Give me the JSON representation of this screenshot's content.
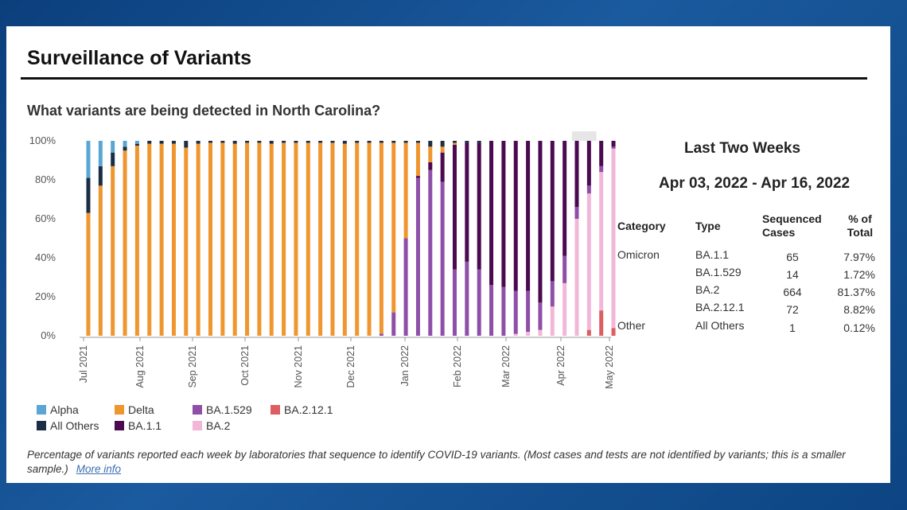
{
  "page_title": "Surveillance of Variants",
  "question": "What variants are being detected in North Carolina?",
  "colors": {
    "Alpha": "#5aa6d3",
    "Delta": "#f0962e",
    "BA.1.529": "#8e4fa9",
    "BA.2.12.1": "#dd5d61",
    "All Others": "#1c2e45",
    "BA.1.1": "#4b0a4f",
    "BA.2": "#f2b7d7"
  },
  "legend": [
    {
      "label": "Alpha",
      "color": "#5aa6d3"
    },
    {
      "label": "Delta",
      "color": "#f0962e"
    },
    {
      "label": "BA.1.529",
      "color": "#8e4fa9"
    },
    {
      "label": "BA.2.12.1",
      "color": "#dd5d61"
    },
    {
      "label": "All Others",
      "color": "#1c2e45"
    },
    {
      "label": "BA.1.1",
      "color": "#4b0a4f"
    },
    {
      "label": "BA.2",
      "color": "#f2b7d7"
    }
  ],
  "caption": "Percentage of variants reported each week by laboratories that sequence to identify COVID-19 variants. (Most cases and tests are not identified by variants; this is a smaller sample.)",
  "more_info": "More info",
  "summary": {
    "heading": "Last Two Weeks",
    "range": "Apr 03, 2022 - Apr 16, 2022",
    "headers": {
      "category": "Category",
      "type": "Type",
      "cases": "Sequenced Cases",
      "pct": "% of Total"
    },
    "rows": [
      {
        "category": "Omicron",
        "type": "BA.1.1",
        "cases": "65",
        "pct": "7.97%"
      },
      {
        "category": "",
        "type": "BA.1.529",
        "cases": "14",
        "pct": "1.72%"
      },
      {
        "category": "",
        "type": "BA.2",
        "cases": "664",
        "pct": "81.37%"
      },
      {
        "category": "",
        "type": "BA.2.12.1",
        "cases": "72",
        "pct": "8.82%"
      },
      {
        "category": "Other",
        "type": "All Others",
        "cases": "1",
        "pct": "0.12%"
      }
    ]
  },
  "chart_data": {
    "type": "bar",
    "stacked": true,
    "title": "",
    "ylim": [
      0,
      100
    ],
    "yticks": [
      "0%",
      "20%",
      "40%",
      "60%",
      "80%",
      "100%"
    ],
    "x_tick_labels": [
      "Jul 2021",
      "Aug 2021",
      "Sep 2021",
      "Oct 2021",
      "Nov 2021",
      "Dec 2021",
      "Jan 2022",
      "Feb 2022",
      "Mar 2022",
      "Apr 2022",
      "May 2022"
    ],
    "series_order": [
      "BA.2.12.1",
      "BA.2",
      "BA.1.529",
      "BA.1.1",
      "Delta",
      "All Others",
      "Alpha"
    ],
    "weeks": [
      {
        "Delta": 63,
        "All Others": 18,
        "Alpha": 19
      },
      {
        "Delta": 77,
        "All Others": 10,
        "Alpha": 13
      },
      {
        "Delta": 87,
        "All Others": 7,
        "Alpha": 6
      },
      {
        "Delta": 95,
        "All Others": 2,
        "Alpha": 3
      },
      {
        "Delta": 97.5,
        "All Others": 1,
        "Alpha": 1.5
      },
      {
        "Delta": 98.5,
        "All Others": 1.5
      },
      {
        "Delta": 98.5,
        "All Others": 1.5
      },
      {
        "Delta": 98.5,
        "All Others": 1.5
      },
      {
        "Delta": 96.5,
        "All Others": 3.5
      },
      {
        "Delta": 98.5,
        "All Others": 1.5
      },
      {
        "Delta": 99,
        "All Others": 1
      },
      {
        "Delta": 99,
        "All Others": 1
      },
      {
        "Delta": 98.5,
        "All Others": 1.5
      },
      {
        "Delta": 99,
        "All Others": 1
      },
      {
        "Delta": 99,
        "All Others": 1
      },
      {
        "Delta": 98.5,
        "All Others": 1.5
      },
      {
        "Delta": 99,
        "All Others": 1
      },
      {
        "Delta": 99,
        "All Others": 1
      },
      {
        "Delta": 99,
        "All Others": 1
      },
      {
        "Delta": 99,
        "All Others": 1
      },
      {
        "Delta": 99,
        "All Others": 1
      },
      {
        "Delta": 98.5,
        "All Others": 1.5
      },
      {
        "Delta": 99,
        "All Others": 1
      },
      {
        "Delta": 99,
        "All Others": 1
      },
      {
        "BA.1.529": 1,
        "Delta": 98,
        "All Others": 1
      },
      {
        "BA.1.529": 12,
        "Delta": 87,
        "All Others": 1
      },
      {
        "BA.1.529": 50,
        "Delta": 49,
        "All Others": 1
      },
      {
        "BA.1.529": 81,
        "BA.1.1": 1,
        "Delta": 17,
        "All Others": 1
      },
      {
        "BA.1.529": 85,
        "BA.1.1": 4,
        "Delta": 8,
        "All Others": 3
      },
      {
        "BA.1.529": 79,
        "BA.1.1": 15,
        "Delta": 3,
        "All Others": 3
      },
      {
        "BA.1.529": 34,
        "BA.1.1": 64,
        "Delta": 1,
        "All Others": 1
      },
      {
        "BA.1.529": 38,
        "BA.1.1": 61,
        "All Others": 1
      },
      {
        "BA.1.529": 34,
        "BA.1.1": 65,
        "All Others": 1
      },
      {
        "BA.1.529": 26,
        "BA.1.1": 74
      },
      {
        "BA.1.529": 25,
        "BA.1.1": 75
      },
      {
        "BA.2": 1,
        "BA.1.529": 22,
        "BA.1.1": 77
      },
      {
        "BA.2": 2,
        "BA.1.529": 21,
        "BA.1.1": 77
      },
      {
        "BA.2": 3,
        "BA.1.529": 14,
        "BA.1.1": 83
      },
      {
        "BA.2": 15,
        "BA.1.529": 13,
        "BA.1.1": 72
      },
      {
        "BA.2": 27,
        "BA.1.529": 14,
        "BA.1.1": 59
      },
      {
        "BA.2": 60,
        "BA.1.529": 6,
        "BA.1.1": 34
      },
      {
        "BA.2.12.1": 3,
        "BA.2": 70,
        "BA.1.529": 4,
        "BA.1.1": 23
      },
      {
        "BA.2.12.1": 13,
        "BA.2": 71,
        "BA.1.529": 3,
        "BA.1.1": 13
      },
      {
        "BA.2.12.1": 4,
        "BA.2": 92,
        "BA.1.529": 1,
        "BA.1.1": 3
      }
    ]
  }
}
